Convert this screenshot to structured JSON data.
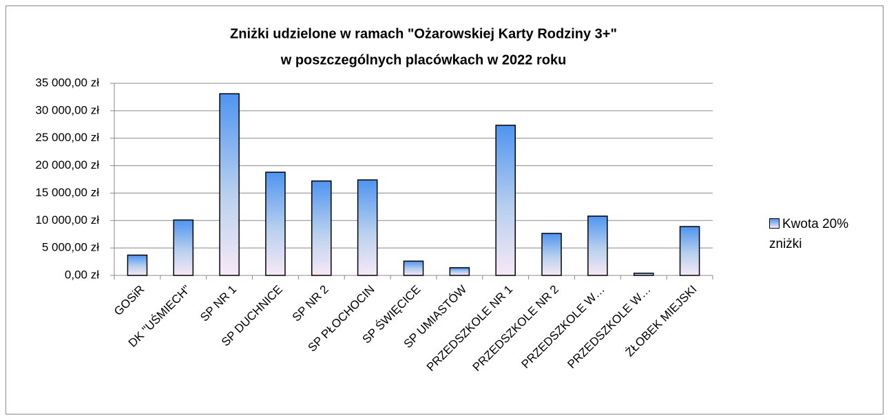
{
  "chart_data": {
    "type": "bar",
    "title": [
      "Zniżki udzielone w ramach \"Ożarowskiej Karty Rodziny 3+\"",
      "w poszczególnych placówkach w  2022 roku"
    ],
    "categories": [
      "GOSiR",
      "DK \"UŚMIECH\"",
      "SP NR 1",
      "SP DUCHNICE",
      "SP NR 2",
      "SP PŁOCHOCIN",
      "SP ŚWIĘCICE",
      "SP UMIASTÓW",
      "PRZEDSZKOLE NR 1",
      "PRZEDSZKOLE NR 2",
      "PRZEDSZKOLE W…",
      "PRZEDSZKOLE W…",
      "ŻŁOBEK MIEJSKI"
    ],
    "series": [
      {
        "name": "Kwota 20% zniżki",
        "color": "#4f94f0",
        "values": [
          3700,
          10100,
          33100,
          18800,
          17200,
          17400,
          2600,
          1400,
          27350,
          7650,
          10800,
          400,
          8900
        ]
      }
    ],
    "ylim": [
      0,
      35000
    ],
    "yticks": [
      {
        "value": 0,
        "label": "0,00 zł"
      },
      {
        "value": 5000,
        "label": "5 000,00 zł"
      },
      {
        "value": 10000,
        "label": "10 000,00 zł"
      },
      {
        "value": 15000,
        "label": "15 000,00 zł"
      },
      {
        "value": 20000,
        "label": "20 000,00 zł"
      },
      {
        "value": 25000,
        "label": "25 000,00 zł"
      },
      {
        "value": 30000,
        "label": "30 000,00 zł"
      },
      {
        "value": 35000,
        "label": "35 000,00 zł"
      }
    ],
    "grid": true,
    "legend": "right"
  }
}
